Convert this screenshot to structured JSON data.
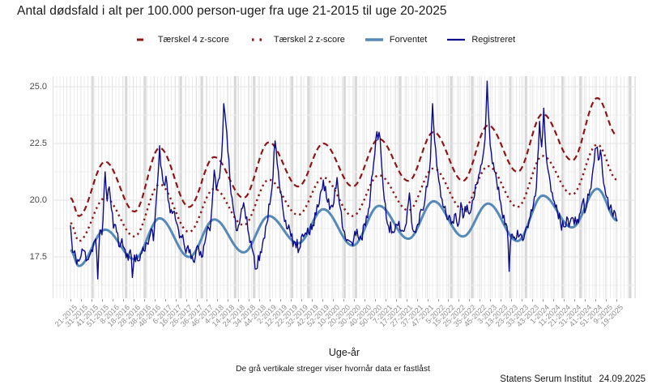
{
  "chart_data": {
    "type": "line",
    "title": "Antal dødsfald i alt per 100.000 person-uger fra uge 21-2015 til uge 20-2025",
    "xlabel": "Uge-år",
    "ylabel": "",
    "caption": "De grå vertikale streger viser hvornår data er fastlåst",
    "legend_position": "top",
    "grid": true,
    "x_unit": "ISO uge-år",
    "x_start": "21-2015",
    "x_end": "20-2025",
    "n_weeks": 522,
    "x_tick_interval_weeks": 10,
    "x_tick_labels": [
      "21-2015",
      "31-2015",
      "41-2015",
      "51-2015",
      "8-2016",
      "18-2016",
      "28-2016",
      "38-2016",
      "48-2016",
      "6-2017",
      "16-2017",
      "26-2017",
      "36-2017",
      "46-2017",
      "4-2018",
      "14-2018",
      "24-2018",
      "34-2018",
      "44-2018",
      "2-2019",
      "12-2019",
      "22-2019",
      "32-2019",
      "42-2019",
      "52-2019",
      "10-2020",
      "20-2020",
      "30-2020",
      "40-2020",
      "50-2020",
      "7-2021",
      "17-2021",
      "27-2021",
      "37-2021",
      "47-2021",
      "5-2022",
      "15-2022",
      "25-2022",
      "35-2022",
      "45-2022",
      "3-2023",
      "13-2023",
      "23-2023",
      "33-2023",
      "43-2023",
      "1-2024",
      "11-2024",
      "21-2024",
      "31-2024",
      "41-2024",
      "51-2024",
      "9-2025",
      "19-2025"
    ],
    "y_ticks": [
      17.5,
      20.0,
      22.5,
      25.0
    ],
    "y_tick_labels": [
      "17.5",
      "20.0",
      "22.5",
      "25.0"
    ],
    "y_minor_ticks": [
      16.25,
      18.75,
      21.25,
      23.75
    ],
    "ylim": [
      15.7,
      25.45
    ],
    "freeze_line_weeks": [
      21,
      53,
      71,
      105,
      125,
      157,
      175,
      211,
      227,
      261,
      272,
      314,
      363,
      383,
      419,
      434,
      469,
      486,
      533
    ],
    "colors": {
      "threshold": "#8e1616",
      "expected": "#5589b8",
      "registered": "#0b0b8b",
      "freeze_line": "#d8d8d8",
      "grid_major": "#e3e3e3",
      "grid_minor": "#efefef",
      "axis_text_y": "#4a4a4a",
      "axis_text_x": "#909090"
    },
    "series": [
      {
        "id": "threshold4",
        "name": "Tærskel 4 z-score",
        "style": "dashed",
        "color": "#8e1616",
        "width": 2.2,
        "smooth": true,
        "anchors": [
          [
            0,
            20.1
          ],
          [
            8,
            19.3
          ],
          [
            33,
            21.7
          ],
          [
            61,
            19.5
          ],
          [
            85,
            22.3
          ],
          [
            113,
            19.7
          ],
          [
            137,
            21.9
          ],
          [
            165,
            20.1
          ],
          [
            189,
            22.55
          ],
          [
            217,
            20.6
          ],
          [
            241,
            22.5
          ],
          [
            269,
            20.6
          ],
          [
            294,
            22.7
          ],
          [
            322,
            20.85
          ],
          [
            346,
            23.0
          ],
          [
            374,
            20.85
          ],
          [
            398,
            23.3
          ],
          [
            426,
            21.25
          ],
          [
            450,
            23.8
          ],
          [
            478,
            21.75
          ],
          [
            502,
            24.5
          ],
          [
            521,
            22.85
          ]
        ]
      },
      {
        "id": "threshold2",
        "name": "Tærskel 2 z-score",
        "style": "dotted",
        "color": "#8e1616",
        "width": 2.4,
        "smooth": true,
        "anchors": [
          [
            0,
            19.0
          ],
          [
            8,
            18.2
          ],
          [
            33,
            20.1
          ],
          [
            61,
            18.4
          ],
          [
            85,
            20.7
          ],
          [
            113,
            18.6
          ],
          [
            137,
            20.5
          ],
          [
            165,
            18.9
          ],
          [
            189,
            20.9
          ],
          [
            217,
            19.35
          ],
          [
            241,
            21.0
          ],
          [
            269,
            19.3
          ],
          [
            294,
            21.1
          ],
          [
            322,
            19.55
          ],
          [
            346,
            21.4
          ],
          [
            374,
            19.6
          ],
          [
            398,
            21.5
          ],
          [
            426,
            19.7
          ],
          [
            450,
            21.95
          ],
          [
            478,
            20.25
          ],
          [
            502,
            22.45
          ],
          [
            521,
            20.9
          ]
        ]
      },
      {
        "id": "expected",
        "name": "Forventet",
        "style": "solid",
        "color": "#5589b8",
        "width": 3.0,
        "smooth": true,
        "anchors": [
          [
            0,
            17.8
          ],
          [
            8,
            17.1
          ],
          [
            33,
            18.7
          ],
          [
            61,
            17.4
          ],
          [
            85,
            19.2
          ],
          [
            113,
            17.5
          ],
          [
            137,
            19.15
          ],
          [
            165,
            17.7
          ],
          [
            189,
            19.3
          ],
          [
            217,
            18.1
          ],
          [
            241,
            19.6
          ],
          [
            269,
            18.0
          ],
          [
            294,
            19.75
          ],
          [
            322,
            18.3
          ],
          [
            346,
            19.95
          ],
          [
            374,
            18.4
          ],
          [
            398,
            19.85
          ],
          [
            426,
            18.2
          ],
          [
            450,
            20.2
          ],
          [
            478,
            18.8
          ],
          [
            502,
            20.5
          ],
          [
            521,
            19.1
          ]
        ]
      },
      {
        "id": "registered",
        "name": "Registreret",
        "style": "solid",
        "color": "#0b0b8b",
        "width": 1.4,
        "smooth": false,
        "noise": 0.33,
        "seed": 11,
        "anchors": [
          [
            0,
            18.9
          ],
          [
            2,
            17.7
          ],
          [
            5,
            17.5
          ],
          [
            8,
            17.3
          ],
          [
            12,
            17.8
          ],
          [
            16,
            17.4
          ],
          [
            20,
            17.8
          ],
          [
            24,
            18.3
          ],
          [
            26,
            16.5
          ],
          [
            28,
            18.7
          ],
          [
            30,
            18.5
          ],
          [
            33,
            21.2
          ],
          [
            35,
            20.0
          ],
          [
            37,
            20.6
          ],
          [
            39,
            19.6
          ],
          [
            41,
            18.8
          ],
          [
            45,
            18.6
          ],
          [
            47,
            17.9
          ],
          [
            49,
            18.3
          ],
          [
            53,
            17.5
          ],
          [
            57,
            17.8
          ],
          [
            59,
            16.6
          ],
          [
            61,
            17.6
          ],
          [
            65,
            17.3
          ],
          [
            69,
            17.9
          ],
          [
            73,
            18.1
          ],
          [
            77,
            18.7
          ],
          [
            79,
            18.2
          ],
          [
            81,
            19.4
          ],
          [
            83,
            20.8
          ],
          [
            85,
            22.4
          ],
          [
            87,
            21.3
          ],
          [
            89,
            20.7
          ],
          [
            91,
            21.1
          ],
          [
            93,
            20.0
          ],
          [
            97,
            19.4
          ],
          [
            101,
            19.0
          ],
          [
            105,
            18.4
          ],
          [
            109,
            17.9
          ],
          [
            113,
            17.7
          ],
          [
            117,
            17.3
          ],
          [
            121,
            18.0
          ],
          [
            125,
            17.5
          ],
          [
            129,
            18.4
          ],
          [
            133,
            18.7
          ],
          [
            135,
            19.8
          ],
          [
            137,
            21.3
          ],
          [
            139,
            20.5
          ],
          [
            141,
            20.9
          ],
          [
            143,
            21.5
          ],
          [
            145,
            22.9
          ],
          [
            146,
            24.2
          ],
          [
            148,
            23.4
          ],
          [
            150,
            22.1
          ],
          [
            152,
            20.9
          ],
          [
            154,
            20.1
          ],
          [
            156,
            19.4
          ],
          [
            159,
            18.7
          ],
          [
            162,
            19.3
          ],
          [
            165,
            19.9
          ],
          [
            167,
            19.2
          ],
          [
            169,
            18.7
          ],
          [
            173,
            17.9
          ],
          [
            177,
            17.0
          ],
          [
            181,
            17.7
          ],
          [
            185,
            18.3
          ],
          [
            187,
            19.0
          ],
          [
            189,
            19.8
          ],
          [
            191,
            20.2
          ],
          [
            193,
            21.1
          ],
          [
            195,
            22.6
          ],
          [
            197,
            21.6
          ],
          [
            199,
            20.7
          ],
          [
            202,
            19.8
          ],
          [
            206,
            18.8
          ],
          [
            210,
            18.4
          ],
          [
            214,
            18.1
          ],
          [
            218,
            17.8
          ],
          [
            222,
            18.4
          ],
          [
            226,
            18.8
          ],
          [
            230,
            18.7
          ],
          [
            234,
            19.4
          ],
          [
            238,
            20.3
          ],
          [
            241,
            20.9
          ],
          [
            244,
            20.1
          ],
          [
            247,
            19.6
          ],
          [
            251,
            19.9
          ],
          [
            254,
            21.0
          ],
          [
            257,
            19.7
          ],
          [
            261,
            18.6
          ],
          [
            265,
            18.2
          ],
          [
            269,
            18.0
          ],
          [
            273,
            18.7
          ],
          [
            277,
            18.3
          ],
          [
            281,
            18.9
          ],
          [
            285,
            19.7
          ],
          [
            289,
            21.7
          ],
          [
            292,
            23.0
          ],
          [
            295,
            22.8
          ],
          [
            297,
            21.2
          ],
          [
            299,
            20.0
          ],
          [
            303,
            18.9
          ],
          [
            307,
            18.6
          ],
          [
            311,
            18.9
          ],
          [
            315,
            18.6
          ],
          [
            319,
            18.8
          ],
          [
            323,
            20.3
          ],
          [
            326,
            18.7
          ],
          [
            330,
            18.8
          ],
          [
            334,
            19.6
          ],
          [
            338,
            20.1
          ],
          [
            341,
            20.9
          ],
          [
            343,
            21.8
          ],
          [
            345,
            24.3
          ],
          [
            347,
            22.6
          ],
          [
            349,
            21.5
          ],
          [
            351,
            20.8
          ],
          [
            354,
            20.1
          ],
          [
            357,
            19.7
          ],
          [
            360,
            19.2
          ],
          [
            363,
            19.0
          ],
          [
            366,
            19.4
          ],
          [
            369,
            18.9
          ],
          [
            372,
            19.9
          ],
          [
            375,
            19.3
          ],
          [
            378,
            19.8
          ],
          [
            381,
            19.5
          ],
          [
            384,
            20.0
          ],
          [
            387,
            20.7
          ],
          [
            390,
            21.2
          ],
          [
            393,
            21.9
          ],
          [
            395,
            22.7
          ],
          [
            397,
            25.2
          ],
          [
            399,
            23.3
          ],
          [
            401,
            22.1
          ],
          [
            404,
            21.3
          ],
          [
            407,
            20.5
          ],
          [
            410,
            19.9
          ],
          [
            413,
            19.3
          ],
          [
            416,
            18.8
          ],
          [
            418,
            16.9
          ],
          [
            420,
            18.5
          ],
          [
            423,
            18.4
          ],
          [
            426,
            18.7
          ],
          [
            429,
            18.5
          ],
          [
            432,
            18.3
          ],
          [
            435,
            18.8
          ],
          [
            438,
            19.3
          ],
          [
            441,
            19.8
          ],
          [
            444,
            20.6
          ],
          [
            447,
            23.5
          ],
          [
            449,
            22.4
          ],
          [
            451,
            24.1
          ],
          [
            453,
            22.2
          ],
          [
            455,
            21.3
          ],
          [
            458,
            20.4
          ],
          [
            461,
            19.9
          ],
          [
            464,
            19.5
          ],
          [
            467,
            19.0
          ],
          [
            470,
            18.8
          ],
          [
            473,
            19.3
          ],
          [
            476,
            19.0
          ],
          [
            479,
            19.2
          ],
          [
            482,
            18.9
          ],
          [
            485,
            19.4
          ],
          [
            488,
            19.9
          ],
          [
            491,
            19.6
          ],
          [
            494,
            20.2
          ],
          [
            497,
            21.0
          ],
          [
            499,
            21.7
          ],
          [
            501,
            22.3
          ],
          [
            503,
            21.8
          ],
          [
            505,
            22.2
          ],
          [
            507,
            21.2
          ],
          [
            509,
            20.6
          ],
          [
            511,
            20.1
          ],
          [
            513,
            19.6
          ],
          [
            515,
            19.8
          ],
          [
            517,
            19.3
          ],
          [
            519,
            19.5
          ],
          [
            521,
            19.1
          ]
        ]
      }
    ]
  },
  "footer": {
    "source": "Statens Serum Institut",
    "date": "24.09.2025"
  }
}
